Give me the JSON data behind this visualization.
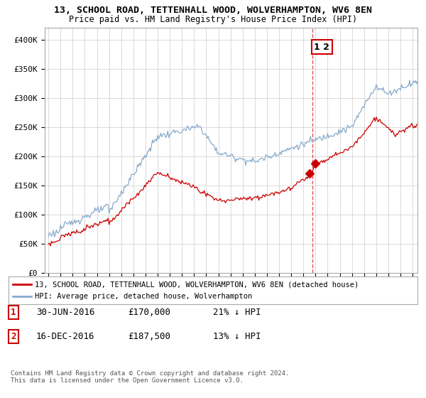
{
  "title_line1": "13, SCHOOL ROAD, TETTENHALL WOOD, WOLVERHAMPTON, WV6 8EN",
  "title_line2": "Price paid vs. HM Land Registry's House Price Index (HPI)",
  "ylim": [
    0,
    420000
  ],
  "yticks": [
    0,
    50000,
    100000,
    150000,
    200000,
    250000,
    300000,
    350000,
    400000
  ],
  "ytick_labels": [
    "£0",
    "£50K",
    "£100K",
    "£150K",
    "£200K",
    "£250K",
    "£300K",
    "£350K",
    "£400K"
  ],
  "legend_red": "13, SCHOOL ROAD, TETTENHALL WOOD, WOLVERHAMPTON, WV6 8EN (detached house)",
  "legend_blue": "HPI: Average price, detached house, Wolverhampton",
  "transaction1_date": "30-JUN-2016",
  "transaction1_price": "£170,000",
  "transaction1_pct": "21% ↓ HPI",
  "transaction2_date": "16-DEC-2016",
  "transaction2_price": "£187,500",
  "transaction2_pct": "13% ↓ HPI",
  "footer": "Contains HM Land Registry data © Crown copyright and database right 2024.\nThis data is licensed under the Open Government Licence v3.0.",
  "line_color_red": "#cc0000",
  "line_color_blue": "#88aacc",
  "vline_color": "#dd4444",
  "background_color": "#ffffff",
  "grid_color": "#cccccc",
  "t1_x": 2016.5,
  "t1_y": 170000,
  "t2_x": 2016.96,
  "t2_y": 187500,
  "xmin": 1994.7,
  "xmax": 2025.4
}
